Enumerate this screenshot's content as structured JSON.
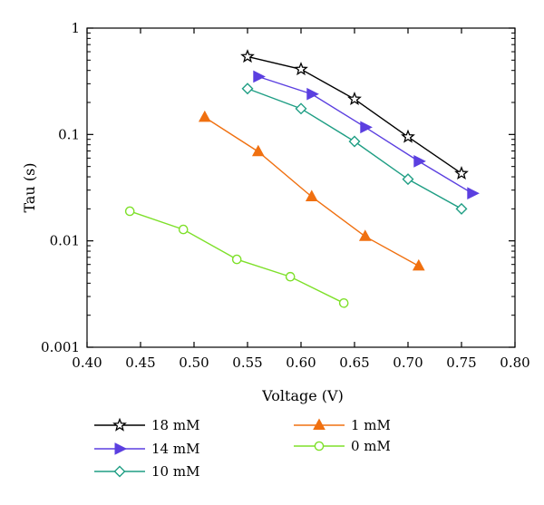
{
  "chart_data": {
    "type": "line",
    "title": "",
    "xlabel": "Voltage (V)",
    "ylabel": "Tau (s)",
    "xlim": [
      0.4,
      0.8
    ],
    "ylim": [
      0.001,
      1
    ],
    "yscale": "log",
    "grid": false,
    "legend_position": "bottom",
    "x_tick_labels": [
      "0.40",
      "0.45",
      "0.50",
      "0.55",
      "0.60",
      "0.65",
      "0.70",
      "0.75",
      "0.80"
    ],
    "x_ticks": [
      0.4,
      0.45,
      0.5,
      0.55,
      0.6,
      0.65,
      0.7,
      0.75,
      0.8
    ],
    "y_tick_labels": [
      "0.001",
      "0.01",
      "0.1",
      "1"
    ],
    "y_ticks": [
      0.001,
      0.01,
      0.1,
      1
    ],
    "series": [
      {
        "name": "18 mM",
        "marker": "star-open",
        "color": "#000000",
        "x": [
          0.55,
          0.6,
          0.65,
          0.7,
          0.75
        ],
        "y": [
          0.54,
          0.41,
          0.215,
          0.095,
          0.043
        ]
      },
      {
        "name": "14 mM",
        "marker": "triangle-right",
        "color": "#5b3fe0",
        "x": [
          0.56,
          0.61,
          0.66,
          0.71,
          0.76
        ],
        "y": [
          0.35,
          0.24,
          0.117,
          0.056,
          0.028
        ]
      },
      {
        "name": "10 mM",
        "marker": "diamond-open",
        "color": "#1f9e84",
        "x": [
          0.55,
          0.6,
          0.65,
          0.7,
          0.75
        ],
        "y": [
          0.27,
          0.175,
          0.086,
          0.038,
          0.02
        ]
      },
      {
        "name": "1 mM",
        "marker": "triangle-up",
        "color": "#f07010",
        "x": [
          0.51,
          0.56,
          0.61,
          0.66,
          0.71
        ],
        "y": [
          0.145,
          0.069,
          0.026,
          0.011,
          0.0058
        ]
      },
      {
        "name": "0 mM",
        "marker": "circle-open",
        "color": "#7ee02a",
        "x": [
          0.44,
          0.49,
          0.54,
          0.59,
          0.64
        ],
        "y": [
          0.019,
          0.0128,
          0.0067,
          0.0046,
          0.0026
        ]
      }
    ]
  }
}
